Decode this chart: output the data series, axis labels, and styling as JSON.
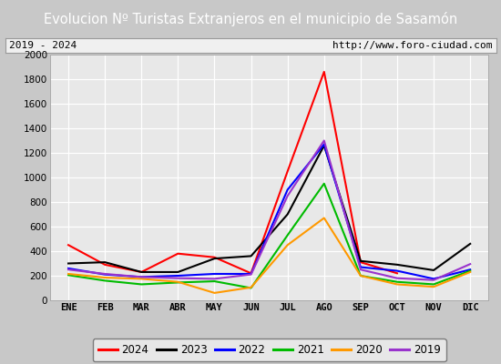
{
  "title": "Evolucion Nº Turistas Extranjeros en el municipio de Sasamón",
  "subtitle_left": "2019 - 2024",
  "subtitle_right": "http://www.foro-ciudad.com",
  "months": [
    "ENE",
    "FEB",
    "MAR",
    "ABR",
    "MAY",
    "JUN",
    "JUL",
    "AGO",
    "SEP",
    "OCT",
    "NOV",
    "DIC"
  ],
  "series": {
    "2024": [
      450,
      290,
      230,
      380,
      350,
      220,
      1050,
      1860,
      310,
      220,
      null,
      null
    ],
    "2023": [
      300,
      310,
      230,
      230,
      340,
      360,
      700,
      1260,
      320,
      290,
      245,
      460
    ],
    "2022": [
      260,
      210,
      190,
      200,
      215,
      215,
      900,
      1270,
      270,
      240,
      175,
      250
    ],
    "2021": [
      205,
      160,
      130,
      145,
      155,
      100,
      530,
      950,
      200,
      150,
      130,
      240
    ],
    "2020": [
      215,
      185,
      175,
      150,
      60,
      105,
      450,
      670,
      200,
      130,
      110,
      230
    ],
    "2019": [
      250,
      215,
      190,
      180,
      175,
      210,
      850,
      1300,
      250,
      180,
      165,
      295
    ]
  },
  "colors": {
    "2024": "#ff0000",
    "2023": "#000000",
    "2022": "#0000ff",
    "2021": "#00bb00",
    "2020": "#ff9900",
    "2019": "#9933cc"
  },
  "legend_order": [
    "2024",
    "2023",
    "2022",
    "2021",
    "2020",
    "2019"
  ],
  "ylim": [
    0,
    2000
  ],
  "yticks": [
    0,
    200,
    400,
    600,
    800,
    1000,
    1200,
    1400,
    1600,
    1800,
    2000
  ],
  "outer_bg": "#c8c8c8",
  "title_bg": "#5b9bd5",
  "title_color": "#ffffff",
  "title_fontsize": 10.5,
  "grid_color": "#ffffff",
  "plot_bg": "#e8e8e8",
  "sub_bg": "#f0f0f0",
  "sub_border": "#999999"
}
